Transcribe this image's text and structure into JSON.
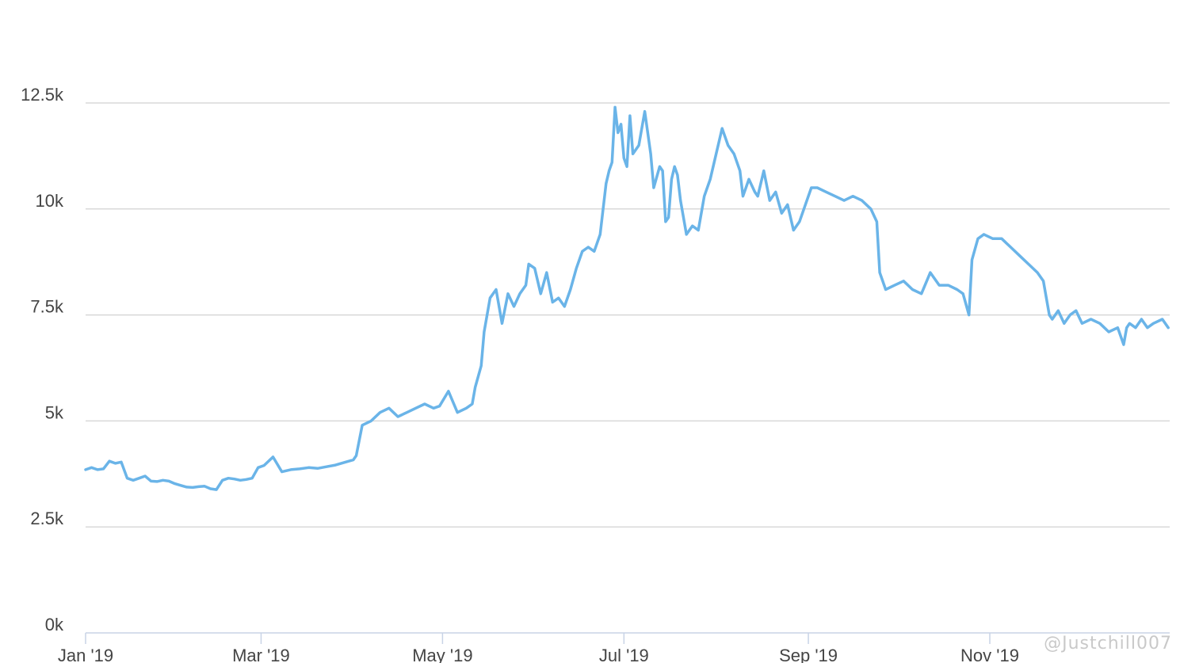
{
  "chart_data": {
    "type": "line",
    "title": "",
    "xlabel": "",
    "ylabel": "",
    "ylim": [
      0,
      12500
    ],
    "xlim": [
      "2019-01-01",
      "2019-12-31"
    ],
    "yticks": [
      {
        "value": 0,
        "label": "0k"
      },
      {
        "value": 2500,
        "label": "2.5k"
      },
      {
        "value": 5000,
        "label": "5k"
      },
      {
        "value": 7500,
        "label": "7.5k"
      },
      {
        "value": 10000,
        "label": "10k"
      },
      {
        "value": 12500,
        "label": "12.5k"
      }
    ],
    "xticks": [
      {
        "date": "2019-01-01",
        "label": "Jan '19"
      },
      {
        "date": "2019-03-01",
        "label": "Mar '19"
      },
      {
        "date": "2019-05-01",
        "label": "May '19"
      },
      {
        "date": "2019-07-01",
        "label": "Jul '19"
      },
      {
        "date": "2019-09-01",
        "label": "Sep '19"
      },
      {
        "date": "2019-11-01",
        "label": "Nov '19"
      }
    ],
    "grid": true,
    "legend": "none",
    "line_color": "#6ab4e8",
    "series": [
      {
        "x": [
          "2019-01-01",
          "2019-01-03",
          "2019-01-05",
          "2019-01-07",
          "2019-01-09",
          "2019-01-11",
          "2019-01-13",
          "2019-01-15",
          "2019-01-17",
          "2019-01-19",
          "2019-01-21",
          "2019-01-23",
          "2019-01-25",
          "2019-01-27",
          "2019-01-29",
          "2019-01-31",
          "2019-02-02",
          "2019-02-04",
          "2019-02-06",
          "2019-02-08",
          "2019-02-10",
          "2019-02-12",
          "2019-02-14",
          "2019-02-16",
          "2019-02-18",
          "2019-02-20",
          "2019-02-22",
          "2019-02-24",
          "2019-02-26",
          "2019-02-28",
          "2019-03-02",
          "2019-03-05",
          "2019-03-08",
          "2019-03-11",
          "2019-03-14",
          "2019-03-17",
          "2019-03-20",
          "2019-03-23",
          "2019-03-26",
          "2019-03-29",
          "2019-04-01",
          "2019-04-02",
          "2019-04-04",
          "2019-04-07",
          "2019-04-10",
          "2019-04-13",
          "2019-04-16",
          "2019-04-19",
          "2019-04-22",
          "2019-04-25",
          "2019-04-28",
          "2019-04-30",
          "2019-05-03",
          "2019-05-06",
          "2019-05-09",
          "2019-05-11",
          "2019-05-12",
          "2019-05-14",
          "2019-05-15",
          "2019-05-17",
          "2019-05-19",
          "2019-05-21",
          "2019-05-23",
          "2019-05-25",
          "2019-05-27",
          "2019-05-29",
          "2019-05-30",
          "2019-06-01",
          "2019-06-03",
          "2019-06-05",
          "2019-06-07",
          "2019-06-09",
          "2019-06-11",
          "2019-06-13",
          "2019-06-15",
          "2019-06-17",
          "2019-06-19",
          "2019-06-21",
          "2019-06-23",
          "2019-06-25",
          "2019-06-26",
          "2019-06-27",
          "2019-06-28",
          "2019-06-29",
          "2019-06-30",
          "2019-07-01",
          "2019-07-02",
          "2019-07-03",
          "2019-07-04",
          "2019-07-06",
          "2019-07-08",
          "2019-07-10",
          "2019-07-11",
          "2019-07-13",
          "2019-07-14",
          "2019-07-15",
          "2019-07-16",
          "2019-07-17",
          "2019-07-18",
          "2019-07-19",
          "2019-07-20",
          "2019-07-22",
          "2019-07-24",
          "2019-07-26",
          "2019-07-28",
          "2019-07-30",
          "2019-08-01",
          "2019-08-03",
          "2019-08-05",
          "2019-08-07",
          "2019-08-09",
          "2019-08-10",
          "2019-08-12",
          "2019-08-14",
          "2019-08-15",
          "2019-08-17",
          "2019-08-19",
          "2019-08-21",
          "2019-08-23",
          "2019-08-25",
          "2019-08-27",
          "2019-08-29",
          "2019-08-31",
          "2019-09-02",
          "2019-09-04",
          "2019-09-07",
          "2019-09-10",
          "2019-09-13",
          "2019-09-16",
          "2019-09-19",
          "2019-09-22",
          "2019-09-24",
          "2019-09-25",
          "2019-09-27",
          "2019-09-30",
          "2019-10-03",
          "2019-10-06",
          "2019-10-09",
          "2019-10-12",
          "2019-10-15",
          "2019-10-18",
          "2019-10-21",
          "2019-10-23",
          "2019-10-25",
          "2019-10-26",
          "2019-10-28",
          "2019-10-30",
          "2019-11-02",
          "2019-11-05",
          "2019-11-08",
          "2019-11-11",
          "2019-11-14",
          "2019-11-17",
          "2019-11-19",
          "2019-11-21",
          "2019-11-22",
          "2019-11-24",
          "2019-11-26",
          "2019-11-28",
          "2019-11-30",
          "2019-12-02",
          "2019-12-05",
          "2019-12-08",
          "2019-12-11",
          "2019-12-14",
          "2019-12-16",
          "2019-12-17",
          "2019-12-18",
          "2019-12-20",
          "2019-12-22",
          "2019-12-24",
          "2019-12-26",
          "2019-12-29",
          "2019-12-31"
        ],
        "y": [
          3850,
          3900,
          3850,
          3870,
          4050,
          4000,
          4030,
          3650,
          3600,
          3650,
          3700,
          3580,
          3570,
          3600,
          3580,
          3520,
          3480,
          3440,
          3430,
          3450,
          3460,
          3400,
          3380,
          3600,
          3650,
          3630,
          3600,
          3620,
          3650,
          3900,
          3950,
          4150,
          3800,
          3850,
          3870,
          3900,
          3880,
          3920,
          3960,
          4020,
          4080,
          4180,
          4900,
          5000,
          5200,
          5300,
          5100,
          5200,
          5300,
          5400,
          5300,
          5350,
          5700,
          5200,
          5300,
          5400,
          5800,
          6300,
          7100,
          7900,
          8100,
          7300,
          8000,
          7700,
          8000,
          8200,
          8700,
          8600,
          8000,
          8500,
          7800,
          7900,
          7700,
          8100,
          8600,
          9000,
          9100,
          9000,
          9400,
          10600,
          10900,
          11100,
          12400,
          11800,
          12000,
          11200,
          11000,
          12200,
          11300,
          11500,
          12300,
          11300,
          10500,
          11000,
          10900,
          9700,
          9800,
          10700,
          11000,
          10800,
          10200,
          9400,
          9600,
          9500,
          10300,
          10700,
          11300,
          11900,
          11500,
          11300,
          10900,
          10300,
          10700,
          10400,
          10300,
          10900,
          10200,
          10400,
          9900,
          10100,
          9500,
          9700,
          10100,
          10500,
          10500,
          10400,
          10300,
          10200,
          10300,
          10200,
          10000,
          9700,
          8500,
          8100,
          8200,
          8300,
          8100,
          8000,
          8500,
          8200,
          8200,
          8100,
          8000,
          7500,
          8800,
          9300,
          9400,
          9300,
          9300,
          9100,
          8900,
          8700,
          8500,
          8300,
          7500,
          7400,
          7600,
          7300,
          7500,
          7600,
          7300,
          7400,
          7300,
          7100,
          7200,
          6800,
          7200,
          7300,
          7200,
          7400,
          7200,
          7300,
          7400,
          7200
        ]
      }
    ]
  },
  "watermark": "@Justchill007"
}
